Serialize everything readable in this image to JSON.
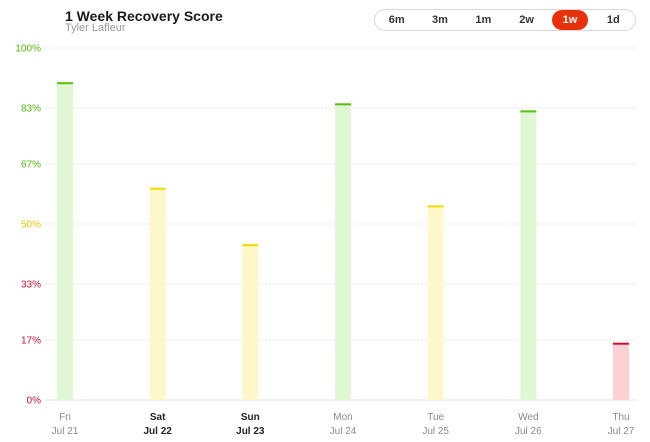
{
  "header": {
    "title": "1 Week Recovery Score",
    "subtitle": "Tyler Lafleur"
  },
  "range_selector": {
    "options": [
      "6m",
      "3m",
      "1m",
      "2w",
      "1w",
      "1d"
    ],
    "selected": "1w",
    "accent": "#e8310a"
  },
  "colors": {
    "green": "#55c10a",
    "green_fill": "#dff7d2",
    "yellow": "#f0dc00",
    "yellow_fill": "#fdf8c8",
    "red": "#c8102e",
    "red_fill": "#fdd0d6",
    "grid": "#e3e3e3"
  },
  "chart_data": {
    "type": "bar",
    "title": "1 Week Recovery Score",
    "subtitle": "Tyler Lafleur",
    "xlabel": "",
    "ylabel": "",
    "ylim": [
      0,
      100
    ],
    "y_ticks": [
      {
        "value": 0,
        "label": "0%"
      },
      {
        "value": 17,
        "label": "17%"
      },
      {
        "value": 33,
        "label": "33%"
      },
      {
        "value": 50,
        "label": "50%"
      },
      {
        "value": 67,
        "label": "67%"
      },
      {
        "value": 83,
        "label": "83%"
      },
      {
        "value": 100,
        "label": "100%"
      }
    ],
    "grid": "horizontal dotted",
    "categories": [
      {
        "day": "Fri",
        "date": "Jul 21",
        "value": 90,
        "zone": "green",
        "bold": false
      },
      {
        "day": "Sat",
        "date": "Jul 22",
        "value": 60,
        "zone": "yellow",
        "bold": true
      },
      {
        "day": "Sun",
        "date": "Jul 23",
        "value": 44,
        "zone": "yellow",
        "bold": true
      },
      {
        "day": "Mon",
        "date": "Jul 24",
        "value": 84,
        "zone": "green",
        "bold": false
      },
      {
        "day": "Tue",
        "date": "Jul 25",
        "value": 55,
        "zone": "yellow",
        "bold": false
      },
      {
        "day": "Wed",
        "date": "Jul 26",
        "value": 82,
        "zone": "green",
        "bold": false
      },
      {
        "day": "Thu",
        "date": "Jul 27",
        "value": 16,
        "zone": "red",
        "bold": false
      }
    ]
  }
}
